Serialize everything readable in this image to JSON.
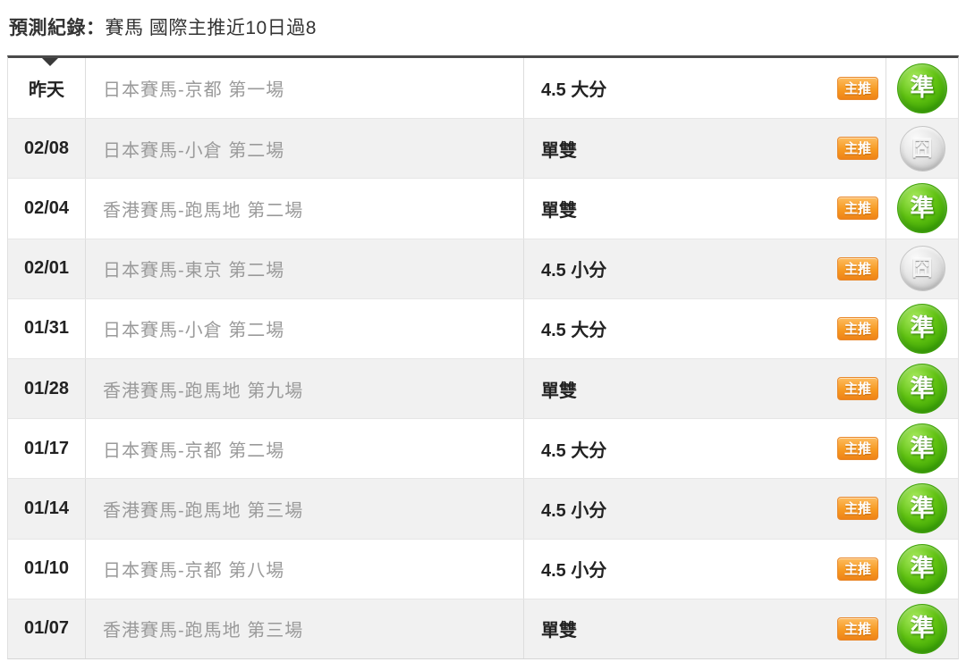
{
  "header": {
    "title_label": "預測紀錄：",
    "title_value": "賽馬 國際主推近10日過8"
  },
  "table": {
    "badge_label": "主推",
    "result_icons": {
      "hit": "準",
      "miss": "囧"
    },
    "rows": [
      {
        "date": "昨天",
        "match": "日本賽馬-京都 第一場",
        "prediction": "4.5 大分",
        "badge": "主推",
        "result": "hit"
      },
      {
        "date": "02/08",
        "match": "日本賽馬-小倉 第二場",
        "prediction": "單雙",
        "badge": "主推",
        "result": "miss"
      },
      {
        "date": "02/04",
        "match": "香港賽馬-跑馬地 第二場",
        "prediction": "單雙",
        "badge": "主推",
        "result": "hit"
      },
      {
        "date": "02/01",
        "match": "日本賽馬-東京 第二場",
        "prediction": "4.5 小分",
        "badge": "主推",
        "result": "miss"
      },
      {
        "date": "01/31",
        "match": "日本賽馬-小倉 第二場",
        "prediction": "4.5 大分",
        "badge": "主推",
        "result": "hit"
      },
      {
        "date": "01/28",
        "match": "香港賽馬-跑馬地 第九場",
        "prediction": "單雙",
        "badge": "主推",
        "result": "hit"
      },
      {
        "date": "01/17",
        "match": "日本賽馬-京都 第二場",
        "prediction": "4.5 大分",
        "badge": "主推",
        "result": "hit"
      },
      {
        "date": "01/14",
        "match": "香港賽馬-跑馬地 第三場",
        "prediction": "4.5 小分",
        "badge": "主推",
        "result": "hit"
      },
      {
        "date": "01/10",
        "match": "日本賽馬-京都 第八場",
        "prediction": "4.5 小分",
        "badge": "主推",
        "result": "hit"
      },
      {
        "date": "01/07",
        "match": "香港賽馬-跑馬地 第三場",
        "prediction": "單雙",
        "badge": "主推",
        "result": "hit"
      }
    ]
  },
  "colors": {
    "badge_orange": "#f08c1e",
    "hit_green": "#3da405",
    "miss_gray": "#c7c7c7",
    "row_alt_bg": "#f1f1f1",
    "muted_text": "#9a9a9a",
    "dark_text": "#222222",
    "top_border": "#4a4a4a"
  }
}
